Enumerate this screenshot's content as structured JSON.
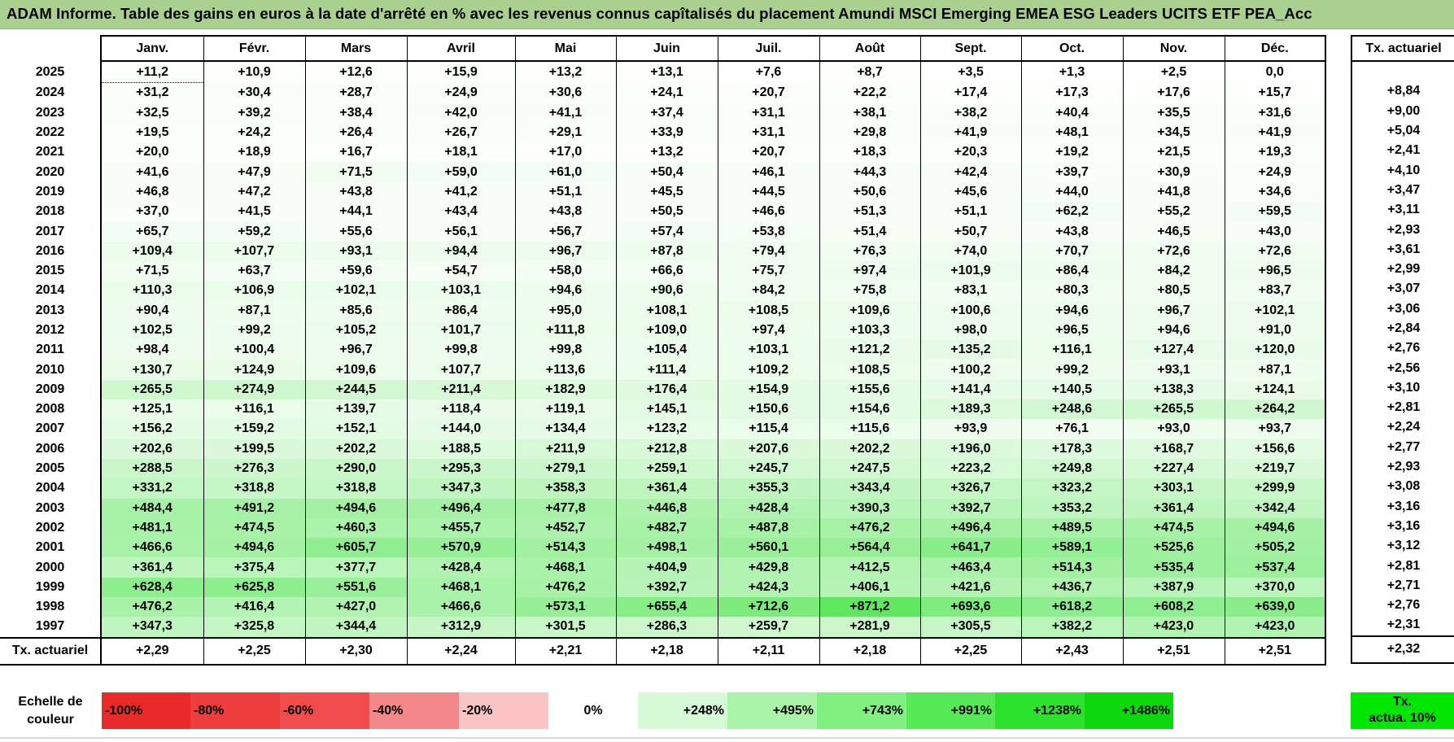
{
  "title": "ADAM Informe. Table des gains en euros à la date d'arrêté en % avec les revenus connus capîtalisés du placement Amundi MSCI Emerging EMEA ESG Leaders UCITS ETF PEA_Acc",
  "months": [
    "Janv.",
    "Févr.",
    "Mars",
    "Avril",
    "Mai",
    "Juin",
    "Juil.",
    "Août",
    "Sept.",
    "Oct.",
    "Nov.",
    "Déc."
  ],
  "side_header": "Tx. actuariel",
  "rows": [
    {
      "year": "2025",
      "values": [
        "+11,2",
        "+10,9",
        "+12,6",
        "+15,9",
        "+13,2",
        "+13,1",
        "+7,6",
        "+8,7",
        "+3,5",
        "+1,3",
        "+2,5",
        "0,0"
      ],
      "rate": ""
    },
    {
      "year": "2024",
      "values": [
        "+31,2",
        "+30,4",
        "+28,7",
        "+24,9",
        "+30,6",
        "+24,1",
        "+20,7",
        "+22,2",
        "+17,4",
        "+17,3",
        "+17,6",
        "+15,7"
      ],
      "rate": "+8,84"
    },
    {
      "year": "2023",
      "values": [
        "+32,5",
        "+39,2",
        "+38,4",
        "+42,0",
        "+41,1",
        "+37,4",
        "+31,1",
        "+38,1",
        "+38,2",
        "+40,4",
        "+35,5",
        "+31,6"
      ],
      "rate": "+9,00"
    },
    {
      "year": "2022",
      "values": [
        "+19,5",
        "+24,2",
        "+26,4",
        "+26,7",
        "+29,1",
        "+33,9",
        "+31,1",
        "+29,8",
        "+41,9",
        "+48,1",
        "+34,5",
        "+41,9"
      ],
      "rate": "+5,04"
    },
    {
      "year": "2021",
      "values": [
        "+20,0",
        "+18,9",
        "+16,7",
        "+18,1",
        "+17,0",
        "+13,2",
        "+20,7",
        "+18,3",
        "+20,3",
        "+19,2",
        "+21,5",
        "+19,3"
      ],
      "rate": "+2,41"
    },
    {
      "year": "2020",
      "values": [
        "+41,6",
        "+47,9",
        "+71,5",
        "+59,0",
        "+61,0",
        "+50,4",
        "+46,1",
        "+44,3",
        "+42,4",
        "+39,7",
        "+30,9",
        "+24,9"
      ],
      "rate": "+4,10"
    },
    {
      "year": "2019",
      "values": [
        "+46,8",
        "+47,2",
        "+43,8",
        "+41,2",
        "+51,1",
        "+45,5",
        "+44,5",
        "+50,6",
        "+45,6",
        "+44,0",
        "+41,8",
        "+34,6"
      ],
      "rate": "+3,47"
    },
    {
      "year": "2018",
      "values": [
        "+37,0",
        "+41,5",
        "+44,1",
        "+43,4",
        "+43,8",
        "+50,5",
        "+46,6",
        "+51,3",
        "+51,1",
        "+62,2",
        "+55,2",
        "+59,5"
      ],
      "rate": "+3,11"
    },
    {
      "year": "2017",
      "values": [
        "+65,7",
        "+59,2",
        "+55,6",
        "+56,1",
        "+56,7",
        "+57,4",
        "+53,8",
        "+51,4",
        "+50,7",
        "+43,8",
        "+46,5",
        "+43,0"
      ],
      "rate": "+2,93"
    },
    {
      "year": "2016",
      "values": [
        "+109,4",
        "+107,7",
        "+93,1",
        "+94,4",
        "+96,7",
        "+87,8",
        "+79,4",
        "+76,3",
        "+74,0",
        "+70,7",
        "+72,6",
        "+72,6"
      ],
      "rate": "+3,61"
    },
    {
      "year": "2015",
      "values": [
        "+71,5",
        "+63,7",
        "+59,6",
        "+54,7",
        "+58,0",
        "+66,6",
        "+75,7",
        "+97,4",
        "+101,9",
        "+86,4",
        "+84,2",
        "+96,5"
      ],
      "rate": "+2,99"
    },
    {
      "year": "2014",
      "values": [
        "+110,3",
        "+106,9",
        "+102,1",
        "+103,1",
        "+94,6",
        "+90,6",
        "+84,2",
        "+75,8",
        "+83,1",
        "+80,3",
        "+80,5",
        "+83,7"
      ],
      "rate": "+3,07"
    },
    {
      "year": "2013",
      "values": [
        "+90,4",
        "+87,1",
        "+85,6",
        "+86,4",
        "+95,0",
        "+108,1",
        "+108,5",
        "+109,6",
        "+100,6",
        "+94,6",
        "+96,7",
        "+102,1"
      ],
      "rate": "+3,06"
    },
    {
      "year": "2012",
      "values": [
        "+102,5",
        "+99,2",
        "+105,2",
        "+101,7",
        "+111,8",
        "+109,0",
        "+97,4",
        "+103,3",
        "+98,0",
        "+96,5",
        "+94,6",
        "+91,0"
      ],
      "rate": "+2,84"
    },
    {
      "year": "2011",
      "values": [
        "+98,4",
        "+100,4",
        "+96,7",
        "+99,8",
        "+99,8",
        "+105,4",
        "+103,1",
        "+121,2",
        "+135,2",
        "+116,1",
        "+127,4",
        "+120,0"
      ],
      "rate": "+2,76"
    },
    {
      "year": "2010",
      "values": [
        "+130,7",
        "+124,9",
        "+109,6",
        "+107,7",
        "+113,6",
        "+111,4",
        "+109,2",
        "+108,5",
        "+100,2",
        "+99,2",
        "+93,1",
        "+87,1"
      ],
      "rate": "+2,56"
    },
    {
      "year": "2009",
      "values": [
        "+265,5",
        "+274,9",
        "+244,5",
        "+211,4",
        "+182,9",
        "+176,4",
        "+154,9",
        "+155,6",
        "+141,4",
        "+140,5",
        "+138,3",
        "+124,1"
      ],
      "rate": "+3,10"
    },
    {
      "year": "2008",
      "values": [
        "+125,1",
        "+116,1",
        "+139,7",
        "+118,4",
        "+119,1",
        "+145,1",
        "+150,6",
        "+154,6",
        "+189,3",
        "+248,6",
        "+265,5",
        "+264,2"
      ],
      "rate": "+2,81"
    },
    {
      "year": "2007",
      "values": [
        "+156,2",
        "+159,2",
        "+152,1",
        "+144,0",
        "+134,4",
        "+123,2",
        "+115,4",
        "+115,6",
        "+93,9",
        "+76,1",
        "+93,0",
        "+93,7"
      ],
      "rate": "+2,24"
    },
    {
      "year": "2006",
      "values": [
        "+202,6",
        "+199,5",
        "+202,2",
        "+188,5",
        "+211,9",
        "+212,8",
        "+207,6",
        "+202,2",
        "+196,0",
        "+178,3",
        "+168,7",
        "+156,6"
      ],
      "rate": "+2,77"
    },
    {
      "year": "2005",
      "values": [
        "+288,5",
        "+276,3",
        "+290,0",
        "+295,3",
        "+279,1",
        "+259,1",
        "+245,7",
        "+247,5",
        "+223,2",
        "+249,8",
        "+227,4",
        "+219,7"
      ],
      "rate": "+2,93"
    },
    {
      "year": "2004",
      "values": [
        "+331,2",
        "+318,8",
        "+318,8",
        "+347,3",
        "+358,3",
        "+361,4",
        "+355,3",
        "+343,4",
        "+326,7",
        "+323,2",
        "+303,1",
        "+299,9"
      ],
      "rate": "+3,08"
    },
    {
      "year": "2003",
      "values": [
        "+484,4",
        "+491,2",
        "+494,6",
        "+496,4",
        "+477,8",
        "+446,8",
        "+428,4",
        "+390,3",
        "+392,7",
        "+353,2",
        "+361,4",
        "+342,4"
      ],
      "rate": "+3,16"
    },
    {
      "year": "2002",
      "values": [
        "+481,1",
        "+474,5",
        "+460,3",
        "+455,7",
        "+452,7",
        "+482,7",
        "+487,8",
        "+476,2",
        "+496,4",
        "+489,5",
        "+474,5",
        "+494,6"
      ],
      "rate": "+3,16"
    },
    {
      "year": "2001",
      "values": [
        "+466,6",
        "+494,6",
        "+605,7",
        "+570,9",
        "+514,3",
        "+498,1",
        "+560,1",
        "+564,4",
        "+641,7",
        "+589,1",
        "+525,6",
        "+505,2"
      ],
      "rate": "+3,12"
    },
    {
      "year": "2000",
      "values": [
        "+361,4",
        "+375,4",
        "+377,7",
        "+428,4",
        "+468,1",
        "+404,9",
        "+429,8",
        "+412,5",
        "+463,4",
        "+514,3",
        "+535,4",
        "+537,4"
      ],
      "rate": "+2,81"
    },
    {
      "year": "1999",
      "values": [
        "+628,4",
        "+625,8",
        "+551,6",
        "+468,1",
        "+476,2",
        "+392,7",
        "+424,3",
        "+406,1",
        "+421,6",
        "+436,7",
        "+387,9",
        "+370,0"
      ],
      "rate": "+2,71"
    },
    {
      "year": "1998",
      "values": [
        "+476,2",
        "+416,4",
        "+427,0",
        "+466,6",
        "+573,1",
        "+655,4",
        "+712,6",
        "+871,2",
        "+693,6",
        "+618,2",
        "+608,2",
        "+639,0"
      ],
      "rate": "+2,76"
    },
    {
      "year": "1997",
      "values": [
        "+347,3",
        "+325,8",
        "+344,4",
        "+312,9",
        "+301,5",
        "+286,3",
        "+259,7",
        "+281,9",
        "+305,5",
        "+382,2",
        "+423,0",
        "+423,0"
      ],
      "rate": "+2,31"
    }
  ],
  "footer": {
    "label": "Tx. actuariel",
    "values": [
      "+2,29",
      "+2,25",
      "+2,30",
      "+2,24",
      "+2,21",
      "+2,18",
      "+2,11",
      "+2,18",
      "+2,25",
      "+2,43",
      "+2,51",
      "+2,51"
    ],
    "overall": "+2,32"
  },
  "scale": {
    "label": "Echelle de couleur",
    "steps": [
      {
        "text": "-100%",
        "color": "#ea2929",
        "kind": "neg"
      },
      {
        "text": "-80%",
        "color": "#ee3d3d",
        "kind": "neg"
      },
      {
        "text": "-60%",
        "color": "#f24b4b",
        "kind": "neg"
      },
      {
        "text": "-40%",
        "color": "#f48787",
        "kind": "neg"
      },
      {
        "text": "-20%",
        "color": "#fbc4c4",
        "kind": "neg"
      },
      {
        "text": "0%",
        "color": "#ffffff",
        "kind": "zero"
      },
      {
        "text": "+248%",
        "color": "#d6fad6",
        "kind": "pos"
      },
      {
        "text": "+495%",
        "color": "#a9f4a9",
        "kind": "pos"
      },
      {
        "text": "+743%",
        "color": "#80f080",
        "kind": "pos"
      },
      {
        "text": "+991%",
        "color": "#55ea55",
        "kind": "pos"
      },
      {
        "text": "+1238%",
        "color": "#2ce22c",
        "kind": "pos"
      },
      {
        "text": "+1486%",
        "color": "#0bd90b",
        "kind": "pos"
      }
    ],
    "tx_label_line1": "Tx.",
    "tx_label_line2": "actua. 10%",
    "tx_color": "#00e600"
  },
  "colors": {
    "title_bg": "#a9d08e",
    "cell_min": "#ffffff",
    "cell_max": "#5ae65a"
  }
}
